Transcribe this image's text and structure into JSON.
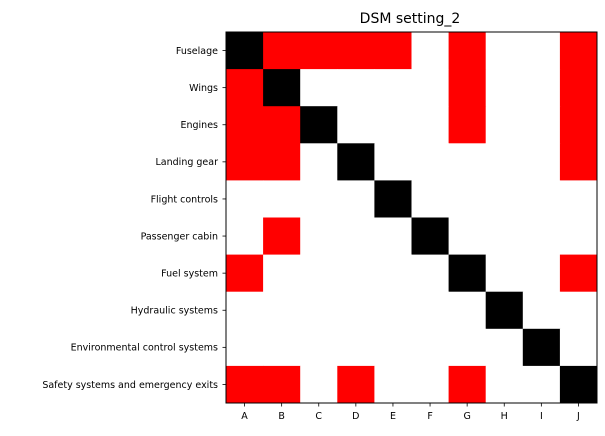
{
  "chart_data": {
    "type": "heatmap",
    "title": "DSM setting_2",
    "xlabel": "",
    "ylabel": "",
    "x_labels": [
      "A",
      "B",
      "C",
      "D",
      "E",
      "F",
      "G",
      "H",
      "I",
      "J"
    ],
    "y_labels": [
      "Fuselage",
      "Wings",
      "Engines",
      "Landing gear",
      "Flight controls",
      "Passenger cabin",
      "Fuel system",
      "Hydraulic systems",
      "Environmental control systems",
      "Safety systems and emergency exits"
    ],
    "matrix": [
      [
        2,
        1,
        1,
        1,
        1,
        0,
        1,
        0,
        0,
        1
      ],
      [
        1,
        2,
        0,
        0,
        0,
        0,
        1,
        0,
        0,
        1
      ],
      [
        1,
        1,
        2,
        0,
        0,
        0,
        1,
        0,
        0,
        1
      ],
      [
        1,
        1,
        0,
        2,
        0,
        0,
        0,
        0,
        0,
        1
      ],
      [
        0,
        0,
        0,
        0,
        2,
        0,
        0,
        0,
        0,
        0
      ],
      [
        0,
        1,
        0,
        0,
        0,
        2,
        0,
        0,
        0,
        0
      ],
      [
        1,
        0,
        0,
        0,
        0,
        0,
        2,
        0,
        0,
        1
      ],
      [
        0,
        0,
        0,
        0,
        0,
        0,
        0,
        2,
        0,
        0
      ],
      [
        0,
        0,
        0,
        0,
        0,
        0,
        0,
        0,
        2,
        0
      ],
      [
        1,
        1,
        0,
        1,
        0,
        0,
        1,
        0,
        0,
        2
      ]
    ],
    "value_colors": {
      "0": "#ffffff",
      "1": "#ff0000",
      "2": "#000000"
    },
    "grid": false
  }
}
